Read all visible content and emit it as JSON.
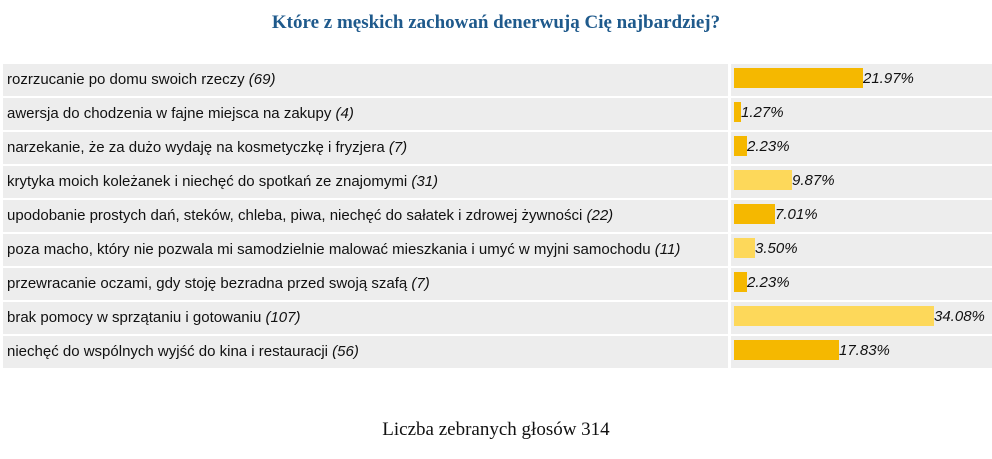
{
  "title": "Które z męskich zachowań denerwują Cię najbardziej?",
  "footer": "Liczba zebranych głosów 314",
  "colors": {
    "bar_dark": "#f5b800",
    "bar_light": "#fdd85a",
    "row_bg": "#ededed",
    "title": "#1f5a8c"
  },
  "chart_data": {
    "type": "bar",
    "orientation": "horizontal",
    "title": "Które z męskich zachowań denerwują Cię najbardziej?",
    "categories": [
      "rozrzucanie po domu swoich rzeczy",
      "awersja do chodzenia w fajne miejsca na zakupy",
      "narzekanie, że za dużo wydaję na kosmetyczkę i fryzjera",
      "krytyka moich koleżanek i niechęć do spotkań ze znajomymi",
      "upodobanie prostych dań, steków, chleba, piwa, niechęć do sałatek i zdrowej żywności",
      "poza macho, który nie pozwala mi samodzielnie malować mieszkania i umyć w myjni samochodu",
      "przewracanie oczami, gdy stoję bezradna przed swoją szafą",
      "brak pomocy w sprzątaniu i gotowaniu",
      "niechęć do wspólnych wyjść do kina i restauracji"
    ],
    "counts": [
      "(69)",
      "(4)",
      "(7)",
      "(31)",
      "(22)",
      "(11)",
      "(7)",
      "(107)",
      "(56)"
    ],
    "percent_labels": [
      "21.97%",
      "1.27%",
      "2.23%",
      "9.87%",
      "7.01%",
      "3.50%",
      "2.23%",
      "34.08%",
      "17.83%"
    ],
    "values": [
      21.97,
      1.27,
      2.23,
      9.87,
      7.01,
      3.5,
      2.23,
      34.08,
      17.83
    ],
    "bar_shade": [
      "dark",
      "dark",
      "dark",
      "light",
      "dark",
      "light",
      "dark",
      "light",
      "dark"
    ],
    "total_votes": 314
  }
}
